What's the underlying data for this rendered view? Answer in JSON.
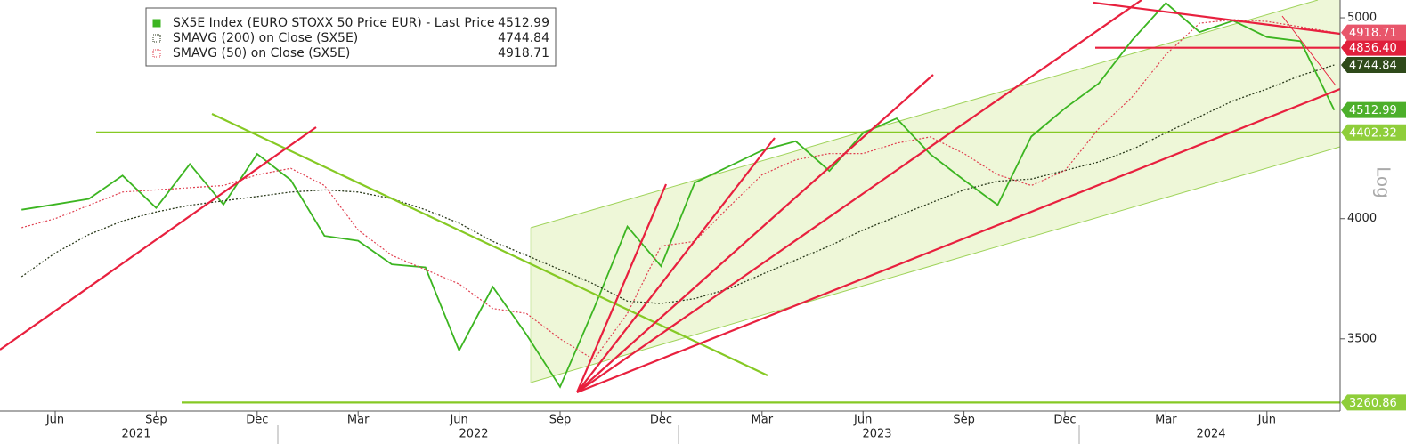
{
  "chart_data": {
    "type": "line",
    "log_scale": true,
    "scale_label": "Log",
    "categories": [
      null,
      "Jun",
      null,
      null,
      "Sep",
      null,
      null,
      "Dec",
      null,
      null,
      "Mar",
      null,
      null,
      "Jun",
      null,
      null,
      "Sep",
      null,
      null,
      "Dec",
      null,
      null,
      "Mar",
      null,
      null,
      "Jun",
      null,
      null,
      "Sep",
      null,
      null,
      "Dec",
      null,
      null,
      "Mar",
      null,
      null,
      "Jun",
      null,
      null
    ],
    "years": [
      "2021",
      "2022",
      "2023",
      "2024"
    ],
    "series": [
      {
        "name": "SX5E Index (EURO STOXX 50 Price EUR) - Last Price",
        "color": "#3cb521",
        "tag_color": "#4caf2a",
        "values": [
          4040,
          4064,
          4089,
          4196,
          4048,
          4250,
          4063,
          4298,
          4175,
          3924,
          3903,
          3802,
          3789,
          3455,
          3708,
          3517,
          3318,
          3618,
          3965,
          3794,
          4163,
          4238,
          4315,
          4359,
          4218,
          4399,
          4471,
          4297,
          4175,
          4061,
          4382,
          4522,
          4648,
          4878,
          5083,
          4921,
          4984,
          4894,
          4872,
          4512.99
        ]
      },
      {
        "name": "SMAVG (200)  on Close (SX5E)",
        "color": "#2b3a1c",
        "tag_color": "#2f4a1a",
        "values": [
          3750,
          3850,
          3930,
          3990,
          4030,
          4060,
          4080,
          4100,
          4120,
          4130,
          4120,
          4090,
          4040,
          3980,
          3900,
          3840,
          3780,
          3720,
          3650,
          3640,
          3660,
          3700,
          3760,
          3820,
          3880,
          3950,
          4010,
          4070,
          4130,
          4170,
          4180,
          4220,
          4260,
          4320,
          4400,
          4480,
          4560,
          4620,
          4690,
          4744.84
        ]
      },
      {
        "name": "SMAVG (50)  on Close (SX5E)",
        "color": "#e04050",
        "tag_color": "#e8566b",
        "values": [
          3960,
          4000,
          4060,
          4120,
          4130,
          4140,
          4150,
          4200,
          4230,
          4150,
          3950,
          3840,
          3780,
          3720,
          3620,
          3600,
          3500,
          3420,
          3600,
          3880,
          3900,
          4050,
          4200,
          4270,
          4300,
          4300,
          4350,
          4380,
          4300,
          4200,
          4150,
          4220,
          4420,
          4580,
          4800,
          4970,
          4990,
          4980,
          4950,
          4918.71
        ]
      }
    ],
    "levels": [
      {
        "value": 4836.4,
        "label": "4836.40",
        "color": "#e0203c"
      },
      {
        "value": 4402.32,
        "label": "4402.32",
        "color": "#8fce3a"
      },
      {
        "value": 3260.86,
        "label": "3260.86",
        "color": "#8fce3a"
      }
    ],
    "ylim": [
      3230,
      5100
    ],
    "yticks": [
      3500,
      4000,
      5000
    ]
  }
}
